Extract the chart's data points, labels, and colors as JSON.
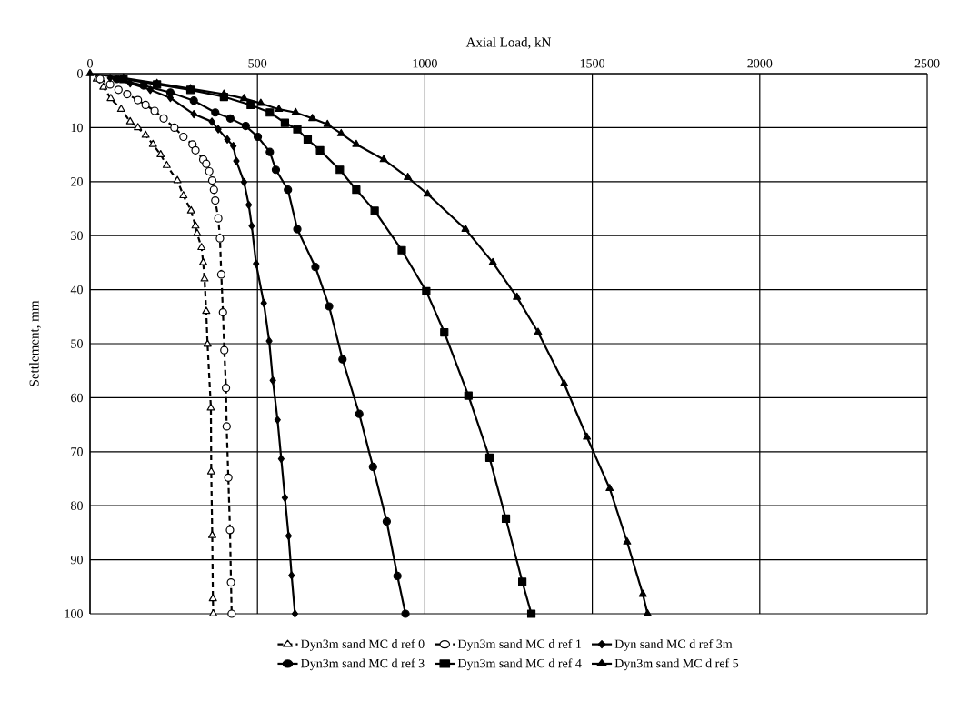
{
  "chart_data": {
    "type": "line",
    "xlabel": "Axial Load, kN",
    "ylabel": "Settlement, mm",
    "xlim": [
      0,
      2500
    ],
    "xticks": [
      0,
      500,
      1000,
      1500,
      2000,
      2500
    ],
    "ylim": [
      100,
      0
    ],
    "yticks": [
      0,
      10,
      20,
      30,
      40,
      50,
      60,
      70,
      80,
      90,
      100
    ],
    "grid": true,
    "legend": "bottom",
    "series": [
      {
        "name": "Dyn3m sand MC d ref 0",
        "color": "#000000",
        "marker": "triangle",
        "line_style": "dashed",
        "x": [
          20,
          40,
          62,
          93,
          120,
          143,
          166,
          188,
          211,
          229,
          261,
          279,
          302,
          315,
          320,
          333,
          338,
          342,
          347,
          351,
          361,
          362,
          365,
          367,
          368
        ],
        "values": [
          1,
          2.5,
          4.6,
          6.6,
          8.9,
          10,
          11.4,
          13.1,
          15,
          17,
          19.8,
          22.6,
          25.4,
          28.2,
          29.6,
          32.2,
          35,
          38,
          44,
          50.1,
          61.9,
          73.7,
          85.5,
          97.2,
          100
        ]
      },
      {
        "name": "Dyn3m sand MC d ref 1",
        "color": "#000000",
        "marker": "circle",
        "line_style": "dashed",
        "x": [
          30,
          60,
          85,
          111,
          143,
          166,
          193,
          220,
          252,
          279,
          306,
          315,
          338,
          347,
          356,
          365,
          370,
          374,
          383,
          388,
          392,
          397,
          401,
          406,
          408,
          413,
          418,
          421,
          423
        ],
        "values": [
          1,
          2,
          3,
          3.8,
          4.9,
          5.8,
          6.9,
          8.3,
          10,
          11.7,
          13.1,
          14.2,
          15.9,
          16.7,
          18.1,
          19.8,
          21.5,
          23.5,
          26.8,
          30.5,
          37.2,
          44.2,
          51.2,
          58.2,
          65.3,
          74.8,
          84.5,
          94.2,
          100
        ]
      },
      {
        "name": "Dyn sand MC d ref 3m",
        "color": "#000000",
        "marker": "diamond",
        "line_style": "solid",
        "x": [
          60,
          120,
          180,
          240,
          310,
          364,
          383,
          410,
          428,
          437,
          460,
          474,
          483,
          496,
          519,
          535,
          546,
          560,
          571,
          582,
          593,
          602,
          612
        ],
        "values": [
          0.8,
          1.8,
          3,
          4.5,
          7.5,
          8.9,
          10.3,
          12.2,
          13.4,
          16.2,
          20.1,
          24.3,
          28.2,
          35.2,
          42.5,
          49.5,
          56.8,
          64.1,
          71.3,
          78.5,
          85.6,
          92.9,
          100
        ]
      },
      {
        "name": "Dyn3m sand MC d ref 3",
        "color": "#000000",
        "marker": "circle",
        "line_style": "solid",
        "x": [
          80,
          160,
          240,
          310,
          374,
          419,
          465,
          501,
          537,
          555,
          591,
          619,
          673,
          714,
          754,
          804,
          845,
          886,
          918,
          942
        ],
        "values": [
          1,
          2.2,
          3.5,
          5,
          7.2,
          8.3,
          9.7,
          11.7,
          14.5,
          17.8,
          21.5,
          28.8,
          35.8,
          43.1,
          52.9,
          63,
          72.8,
          82.9,
          93,
          100
        ]
      },
      {
        "name": "Dyn3m sand MC d ref 4",
        "color": "#000000",
        "marker": "square",
        "line_style": "solid",
        "x": [
          100,
          200,
          300,
          400,
          480,
          537,
          582,
          619,
          650,
          687,
          746,
          795,
          850,
          931,
          1004,
          1058,
          1130,
          1193,
          1242,
          1291,
          1318
        ],
        "values": [
          1,
          2,
          3,
          4.3,
          5.8,
          7.2,
          9.1,
          10.3,
          12.2,
          14.2,
          17.8,
          21.5,
          25.4,
          32.7,
          40.3,
          47.9,
          59.6,
          71.1,
          82.4,
          94.1,
          100
        ]
      },
      {
        "name": "Dyn3m sand MC d ref 5",
        "color": "#000000",
        "marker": "triangle",
        "line_style": "solid",
        "x": [
          0,
          100,
          200,
          300,
          400,
          460,
          510,
          564,
          614,
          664,
          709,
          750,
          795,
          877,
          949,
          1008,
          1121,
          1203,
          1275,
          1338,
          1416,
          1484,
          1552,
          1604,
          1651,
          1665
        ],
        "values": [
          0,
          0.8,
          1.8,
          2.8,
          3.8,
          4.6,
          5.5,
          6.6,
          7.2,
          8.3,
          9.4,
          11.1,
          13.1,
          15.9,
          19.2,
          22.3,
          28.8,
          35,
          41.4,
          47.9,
          57.4,
          67.3,
          76.8,
          86.7,
          96.4,
          100
        ]
      }
    ]
  }
}
